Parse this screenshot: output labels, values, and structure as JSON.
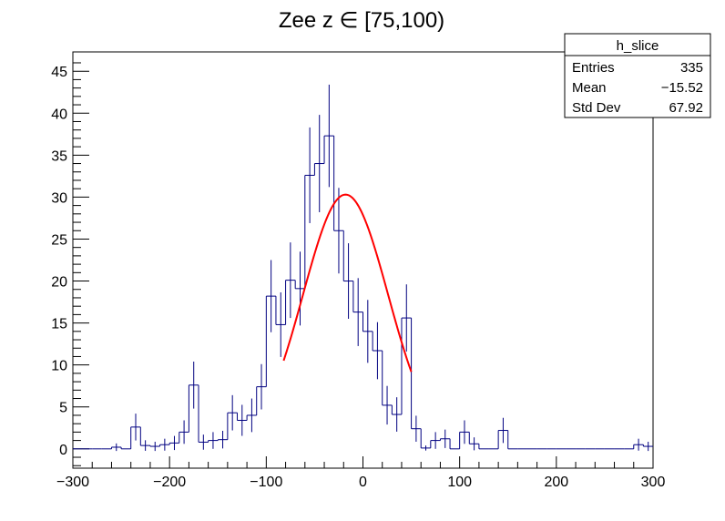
{
  "chart_data": {
    "type": "histogram",
    "title": "Zee z ∈ [75,100)",
    "xlabel": "",
    "ylabel": "",
    "xlim": [
      -300,
      300
    ],
    "ylim": [
      -2.3,
      47.3
    ],
    "bin_width": 10,
    "x_ticks": [
      -300,
      -200,
      -100,
      0,
      100,
      200,
      300
    ],
    "x_tick_labels": [
      "−300",
      "−200",
      "−100",
      "0",
      "100",
      "200",
      "300"
    ],
    "y_ticks": [
      0,
      5,
      10,
      15,
      20,
      25,
      30,
      35,
      40,
      45
    ],
    "y_tick_labels": [
      "0",
      "5",
      "10",
      "15",
      "20",
      "25",
      "30",
      "35",
      "40",
      "45"
    ],
    "series": [
      {
        "name": "h_slice",
        "color": "#000080",
        "bins": [
          {
            "low": -300,
            "high": -290,
            "value": 0,
            "error": 0
          },
          {
            "low": -290,
            "high": -280,
            "value": 0,
            "error": 0
          },
          {
            "low": -280,
            "high": -270,
            "value": 0,
            "error": 0
          },
          {
            "low": -270,
            "high": -260,
            "value": 0,
            "error": 0
          },
          {
            "low": -260,
            "high": -250,
            "value": 0.2,
            "error": 0.45
          },
          {
            "low": -250,
            "high": -240,
            "value": 0,
            "error": 0
          },
          {
            "low": -240,
            "high": -230,
            "value": 2.6,
            "error": 1.6
          },
          {
            "low": -230,
            "high": -220,
            "value": 0.4,
            "error": 0.63
          },
          {
            "low": -220,
            "high": -210,
            "value": 0.3,
            "error": 0.55
          },
          {
            "low": -210,
            "high": -200,
            "value": 0.5,
            "error": 0.71
          },
          {
            "low": -200,
            "high": -190,
            "value": 0.7,
            "error": 0.84
          },
          {
            "low": -190,
            "high": -180,
            "value": 2.0,
            "error": 1.4
          },
          {
            "low": -180,
            "high": -170,
            "value": 7.6,
            "error": 2.8
          },
          {
            "low": -170,
            "high": -160,
            "value": 0.8,
            "error": 0.9
          },
          {
            "low": -160,
            "high": -150,
            "value": 1.0,
            "error": 1.0
          },
          {
            "low": -150,
            "high": -140,
            "value": 1.1,
            "error": 1.05
          },
          {
            "low": -140,
            "high": -130,
            "value": 4.3,
            "error": 2.1
          },
          {
            "low": -130,
            "high": -120,
            "value": 3.4,
            "error": 1.85
          },
          {
            "low": -120,
            "high": -110,
            "value": 4.0,
            "error": 2.0
          },
          {
            "low": -110,
            "high": -100,
            "value": 7.4,
            "error": 2.7
          },
          {
            "low": -100,
            "high": -90,
            "value": 18.2,
            "error": 4.3
          },
          {
            "low": -90,
            "high": -80,
            "value": 14.8,
            "error": 3.85
          },
          {
            "low": -80,
            "high": -70,
            "value": 20.1,
            "error": 4.5
          },
          {
            "low": -70,
            "high": -60,
            "value": 19.1,
            "error": 4.4
          },
          {
            "low": -60,
            "high": -50,
            "value": 32.6,
            "error": 5.7
          },
          {
            "low": -50,
            "high": -40,
            "value": 34.0,
            "error": 5.8
          },
          {
            "low": -40,
            "high": -30,
            "value": 37.3,
            "error": 6.1
          },
          {
            "low": -30,
            "high": -20,
            "value": 26.0,
            "error": 5.1
          },
          {
            "low": -20,
            "high": -10,
            "value": 20.0,
            "error": 4.5
          },
          {
            "low": -10,
            "high": 0,
            "value": 16.3,
            "error": 4.05
          },
          {
            "low": 0,
            "high": 10,
            "value": 14.0,
            "error": 3.75
          },
          {
            "low": 10,
            "high": 20,
            "value": 11.7,
            "error": 3.4
          },
          {
            "low": 20,
            "high": 30,
            "value": 5.2,
            "error": 2.3
          },
          {
            "low": 30,
            "high": 40,
            "value": 4.1,
            "error": 2.05
          },
          {
            "low": 40,
            "high": 50,
            "value": 15.6,
            "error": 4.0
          },
          {
            "low": 50,
            "high": 60,
            "value": 2.4,
            "error": 1.55
          },
          {
            "low": 60,
            "high": 70,
            "value": 0.1,
            "error": 0.3
          },
          {
            "low": 70,
            "high": 80,
            "value": 1.0,
            "error": 1.0
          },
          {
            "low": 80,
            "high": 90,
            "value": 1.2,
            "error": 1.1
          },
          {
            "low": 90,
            "high": 100,
            "value": 0,
            "error": 0
          },
          {
            "low": 100,
            "high": 110,
            "value": 2.0,
            "error": 1.4
          },
          {
            "low": 110,
            "high": 120,
            "value": 0.6,
            "error": 0.77
          },
          {
            "low": 120,
            "high": 130,
            "value": 0,
            "error": 0
          },
          {
            "low": 130,
            "high": 140,
            "value": 0,
            "error": 0
          },
          {
            "low": 140,
            "high": 150,
            "value": 2.2,
            "error": 1.5
          },
          {
            "low": 150,
            "high": 160,
            "value": 0,
            "error": 0
          },
          {
            "low": 160,
            "high": 170,
            "value": 0,
            "error": 0
          },
          {
            "low": 170,
            "high": 180,
            "value": 0,
            "error": 0
          },
          {
            "low": 180,
            "high": 190,
            "value": 0,
            "error": 0
          },
          {
            "low": 190,
            "high": 200,
            "value": 0,
            "error": 0
          },
          {
            "low": 200,
            "high": 210,
            "value": 0,
            "error": 0
          },
          {
            "low": 210,
            "high": 220,
            "value": 0,
            "error": 0
          },
          {
            "low": 220,
            "high": 230,
            "value": 0,
            "error": 0
          },
          {
            "low": 230,
            "high": 240,
            "value": 0,
            "error": 0
          },
          {
            "low": 240,
            "high": 250,
            "value": 0,
            "error": 0
          },
          {
            "low": 250,
            "high": 260,
            "value": 0,
            "error": 0
          },
          {
            "low": 260,
            "high": 270,
            "value": 0,
            "error": 0
          },
          {
            "low": 270,
            "high": 280,
            "value": 0,
            "error": 0
          },
          {
            "low": 280,
            "high": 290,
            "value": 0.5,
            "error": 0.71
          },
          {
            "low": 290,
            "high": 300,
            "value": 0.3,
            "error": 0.55
          }
        ]
      }
    ],
    "fit": {
      "type": "gaussian",
      "color": "#ff0000",
      "amplitude": 30.3,
      "mean": -18,
      "sigma": 44,
      "x_range": [
        -82,
        50
      ]
    },
    "stats_box": {
      "title": "h_slice",
      "position": "top-right",
      "rows": [
        {
          "label": "Entries",
          "value": "335"
        },
        {
          "label": "Mean",
          "value": "−15.52"
        },
        {
          "label": "Std Dev",
          "value": "67.92"
        }
      ]
    }
  }
}
